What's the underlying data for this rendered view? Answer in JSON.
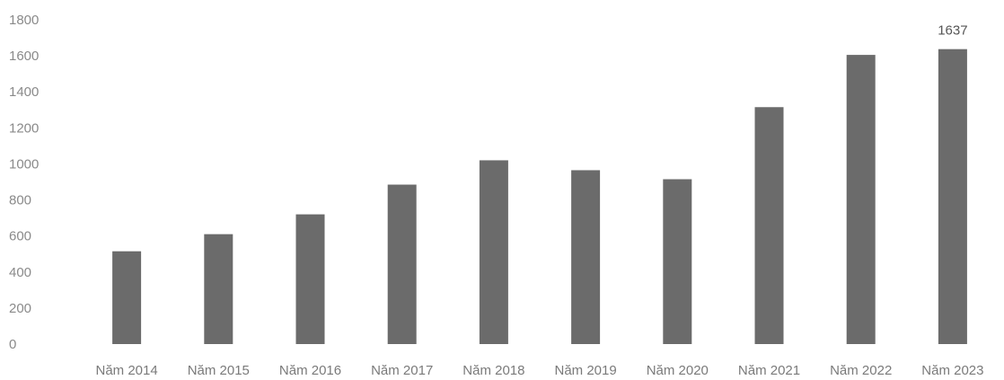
{
  "chart_data": {
    "type": "bar",
    "categories": [
      "Năm 2014",
      "Năm 2015",
      "Năm 2016",
      "Năm 2017",
      "Năm 2018",
      "Năm 2019",
      "Năm 2020",
      "Năm 2021",
      "Năm 2022",
      "Năm 2023"
    ],
    "values": [
      515,
      610,
      720,
      885,
      1020,
      965,
      915,
      1315,
      1605,
      1637
    ],
    "data_labels": [
      {
        "category": "Năm 2023",
        "value": 1637,
        "text": "1637"
      }
    ],
    "title": "",
    "xlabel": "",
    "ylabel": "",
    "ylim": [
      0,
      1800
    ],
    "yticks": [
      0,
      200,
      400,
      600,
      800,
      1000,
      1200,
      1400,
      1600,
      1800
    ],
    "grid": false,
    "legend": "none",
    "bar_color": "#6b6b6b"
  }
}
